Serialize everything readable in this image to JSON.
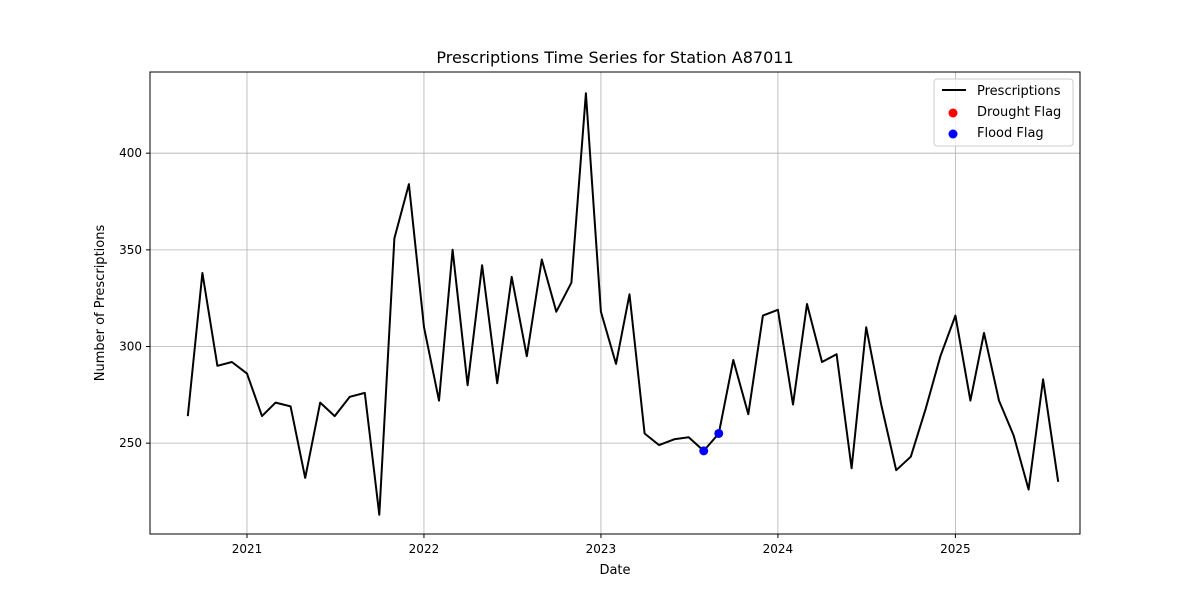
{
  "chart_data": {
    "type": "line",
    "title": "Prescriptions Time Series for Station A87011",
    "xlabel": "Date",
    "ylabel": "Number of Prescriptions",
    "xlim": [
      "2020-06-15",
      "2025-09-15"
    ],
    "ylim": [
      203,
      442
    ],
    "x_ticks": [
      "2021-01-01",
      "2022-01-01",
      "2023-01-01",
      "2024-01-01",
      "2025-01-01"
    ],
    "x_tick_labels": [
      "2021",
      "2022",
      "2023",
      "2024",
      "2025"
    ],
    "y_ticks": [
      250,
      300,
      350,
      400
    ],
    "y_tick_labels": [
      "250",
      "300",
      "350",
      "400"
    ],
    "grid": true,
    "legend_position": "upper right",
    "series": [
      {
        "name": "Prescriptions",
        "kind": "line",
        "color": "#000000",
        "x": [
          "2020-09-01",
          "2020-10-01",
          "2020-11-01",
          "2020-12-01",
          "2021-01-01",
          "2021-02-01",
          "2021-03-01",
          "2021-04-01",
          "2021-05-01",
          "2021-06-01",
          "2021-07-01",
          "2021-08-01",
          "2021-09-01",
          "2021-10-01",
          "2021-11-01",
          "2021-12-01",
          "2022-01-01",
          "2022-02-01",
          "2022-03-01",
          "2022-04-01",
          "2022-05-01",
          "2022-06-01",
          "2022-07-01",
          "2022-08-01",
          "2022-09-01",
          "2022-10-01",
          "2022-11-01",
          "2022-12-01",
          "2023-01-01",
          "2023-02-01",
          "2023-03-01",
          "2023-04-01",
          "2023-05-01",
          "2023-06-01",
          "2023-07-01",
          "2023-08-01",
          "2023-09-01",
          "2023-10-01",
          "2023-11-01",
          "2023-12-01",
          "2024-01-01",
          "2024-02-01",
          "2024-03-01",
          "2024-04-01",
          "2024-05-01",
          "2024-06-01",
          "2024-07-01",
          "2024-08-01",
          "2024-09-01",
          "2024-10-01",
          "2024-11-01",
          "2024-12-01",
          "2025-01-01",
          "2025-02-01",
          "2025-03-01",
          "2025-04-01",
          "2025-05-01",
          "2025-06-01",
          "2025-07-01",
          "2025-08-01"
        ],
        "y": [
          264,
          338,
          290,
          292,
          286,
          264,
          271,
          269,
          232,
          271,
          264,
          274,
          276,
          213,
          356,
          384,
          310,
          272,
          350,
          280,
          342,
          281,
          336,
          295,
          345,
          318,
          333,
          431,
          318,
          291,
          327,
          255,
          249,
          252,
          253,
          246,
          255,
          293,
          265,
          316,
          319,
          270,
          322,
          292,
          296,
          237,
          310,
          270,
          236,
          243,
          268,
          295,
          316,
          272,
          307,
          272,
          254,
          226,
          283,
          230
        ]
      },
      {
        "name": "Drought Flag",
        "kind": "scatter",
        "color": "#ff0000",
        "x": [],
        "y": []
      },
      {
        "name": "Flood Flag",
        "kind": "scatter",
        "color": "#0000ff",
        "x": [
          "2023-08-01",
          "2023-09-01"
        ],
        "y": [
          246,
          255
        ]
      }
    ]
  }
}
